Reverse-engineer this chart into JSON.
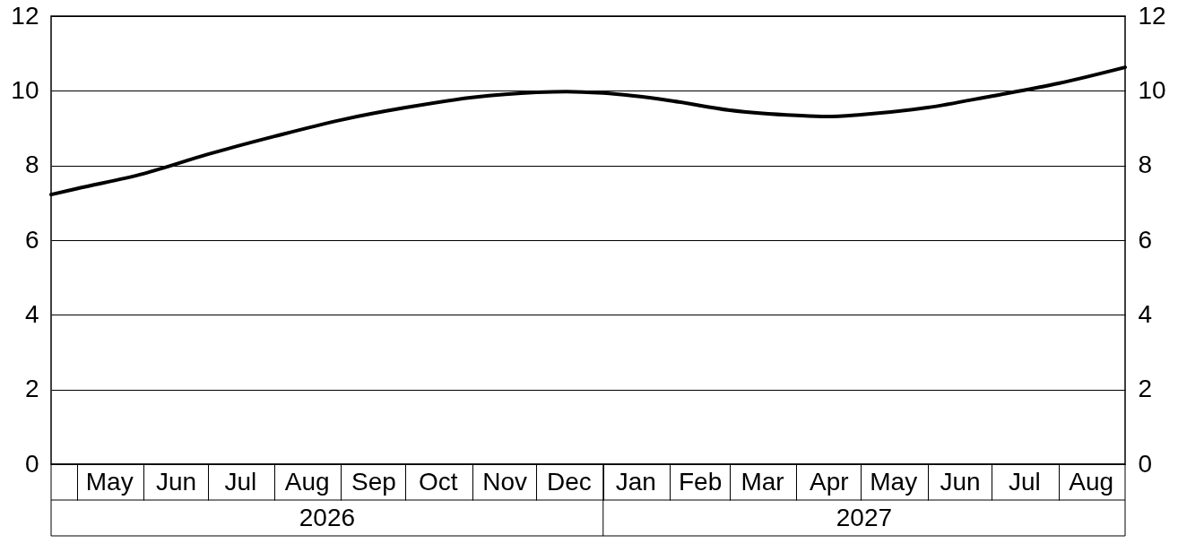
{
  "chart_data": {
    "type": "line",
    "x": [
      "2026-04-19",
      "2026-05-01",
      "2026-06-01",
      "2026-07-01",
      "2026-08-01",
      "2026-09-01",
      "2026-10-01",
      "2026-11-01",
      "2026-12-01",
      "2026-12-15",
      "2027-01-01",
      "2027-02-01",
      "2027-03-01",
      "2027-04-01",
      "2027-04-15",
      "2027-05-01",
      "2027-06-01",
      "2027-07-01",
      "2027-08-01",
      "2027-09-01"
    ],
    "series": [
      {
        "color": "#000000",
        "values": [
          7.22,
          7.38,
          7.78,
          8.3,
          8.78,
          9.22,
          9.55,
          9.82,
          9.96,
          9.98,
          9.94,
          9.74,
          9.48,
          9.34,
          9.31,
          9.36,
          9.55,
          9.86,
          10.2,
          10.63
        ]
      }
    ],
    "xlim": [
      "2026-04-19",
      "2027-09-01"
    ],
    "xticks": [
      {
        "value": "2026-05-16",
        "label": "May"
      },
      {
        "value": "2026-06-16",
        "label": "Jun"
      },
      {
        "value": "2026-07-16",
        "label": "Jul"
      },
      {
        "value": "2026-08-16",
        "label": "Aug"
      },
      {
        "value": "2026-09-16",
        "label": "Sep"
      },
      {
        "value": "2026-10-16",
        "label": "Oct"
      },
      {
        "value": "2026-11-16",
        "label": "Nov"
      },
      {
        "value": "2026-12-16",
        "label": "Dec"
      },
      {
        "value": "2027-01-16",
        "label": "Jan"
      },
      {
        "value": "2027-02-15",
        "label": "Feb"
      },
      {
        "value": "2027-03-16",
        "label": "Mar"
      },
      {
        "value": "2027-04-16",
        "label": "Apr"
      },
      {
        "value": "2027-05-16",
        "label": "May"
      },
      {
        "value": "2027-06-16",
        "label": "Jun"
      },
      {
        "value": "2027-07-16",
        "label": "Jul"
      },
      {
        "value": "2027-08-16",
        "label": "Aug"
      }
    ],
    "ylim": [
      0,
      12
    ],
    "yticks": [
      0,
      2,
      4,
      6,
      8,
      10,
      12
    ],
    "y2lim": [
      0,
      12
    ],
    "y2ticks": [
      0,
      2,
      4,
      6,
      8,
      10,
      12
    ],
    "grid": "y",
    "line_style": "solid",
    "marker": "none",
    "annotations": [
      "2026",
      "2027"
    ]
  }
}
